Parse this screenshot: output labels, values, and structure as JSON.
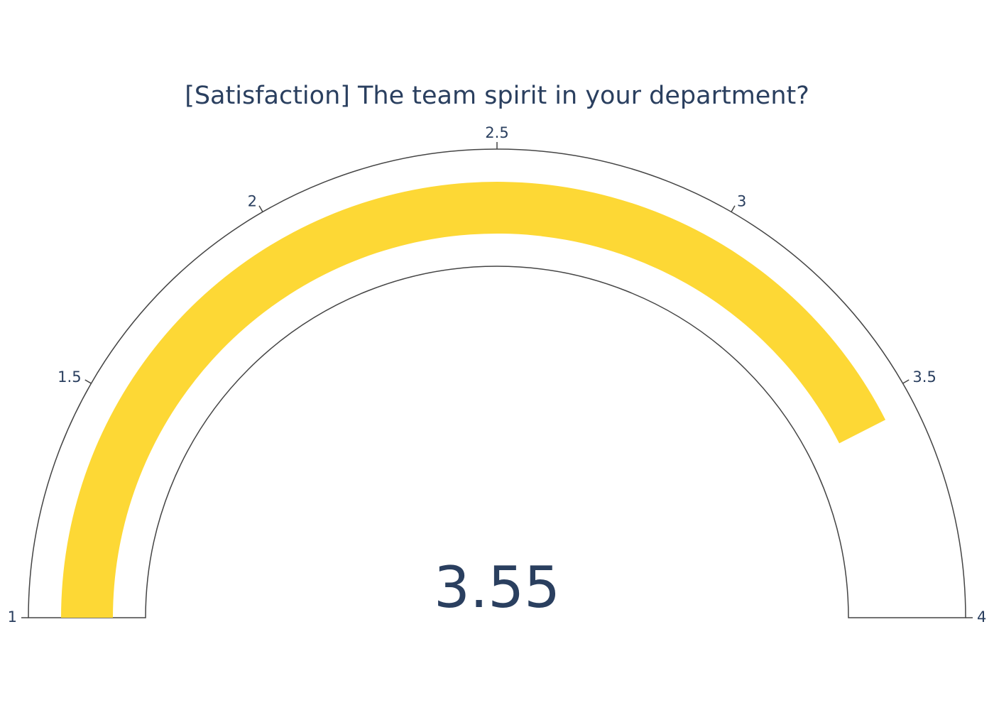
{
  "chart_data": {
    "type": "gauge",
    "title": "[Satisfaction] The team spirit in your department?",
    "value": 3.55,
    "value_label": "3.55",
    "range": [
      1,
      4
    ],
    "ticks": [
      {
        "value": 1,
        "label": "1"
      },
      {
        "value": 1.5,
        "label": "1.5"
      },
      {
        "value": 2,
        "label": "2"
      },
      {
        "value": 2.5,
        "label": "2.5"
      },
      {
        "value": 3,
        "label": "3"
      },
      {
        "value": 3.5,
        "label": "3.5"
      },
      {
        "value": 4,
        "label": "4"
      }
    ],
    "bar_color": "#FDD835",
    "outline_color": "#444444",
    "text_color": "#2a3f5f"
  }
}
